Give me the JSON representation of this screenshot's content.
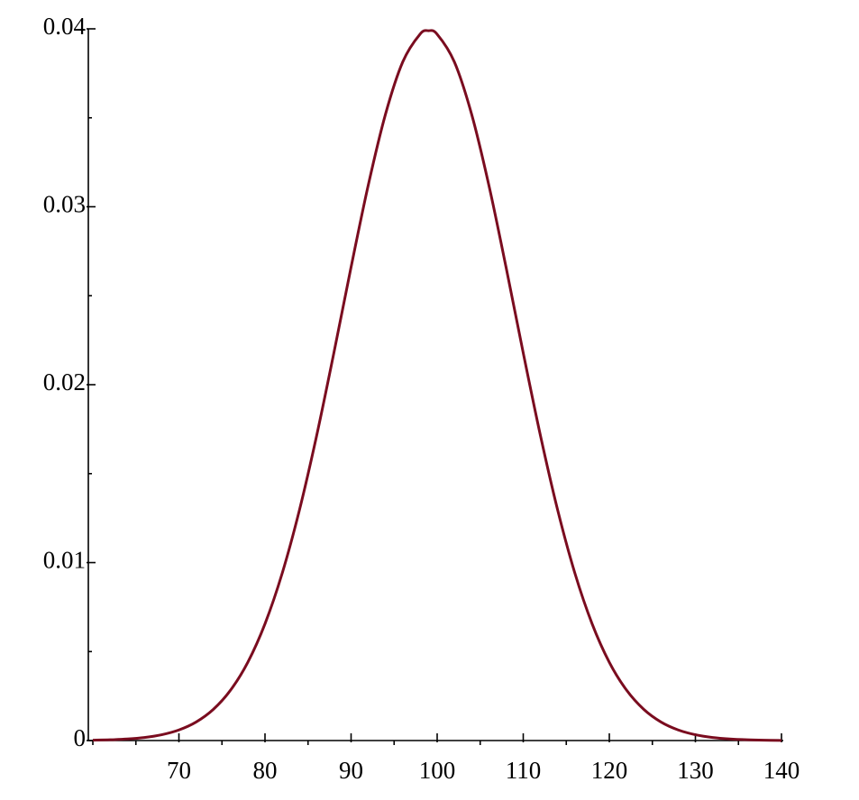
{
  "chart_data": {
    "type": "line",
    "x": [
      60,
      62,
      64,
      66,
      68,
      70,
      72,
      74,
      76,
      78,
      80,
      82,
      84,
      86,
      88,
      90,
      92,
      94,
      96,
      98,
      99,
      100,
      102,
      104,
      106,
      108,
      110,
      112,
      114,
      116,
      118,
      120,
      122,
      124,
      126,
      128,
      130,
      132,
      134,
      136,
      138,
      140
    ],
    "series": [
      {
        "color": "#7a0c1f",
        "values": [
          1.99e-05,
          4.25e-05,
          8.73e-05,
          0.000172,
          0.000327,
          0.000595,
          0.001042,
          0.001753,
          0.002833,
          0.004398,
          0.006562,
          0.009405,
          0.012952,
          0.017137,
          0.021785,
          0.026609,
          0.031225,
          0.035207,
          0.038139,
          0.039695,
          0.039894,
          0.039695,
          0.038139,
          0.035207,
          0.031225,
          0.026609,
          0.021785,
          0.017137,
          0.012952,
          0.009405,
          0.006562,
          0.004398,
          0.002833,
          0.001753,
          0.001042,
          0.000595,
          0.000327,
          0.000172,
          8.73e-05,
          4.25e-05,
          1.99e-05,
          8.9e-06
        ]
      }
    ],
    "xlim": [
      60,
      140
    ],
    "ylim": [
      0,
      0.04
    ],
    "xticks": [
      70,
      80,
      90,
      100,
      110,
      120,
      130,
      140
    ],
    "xminorticks": [
      60,
      65,
      75,
      85,
      95,
      105,
      115,
      125,
      135
    ],
    "yticks": [
      0,
      0.01,
      0.02,
      0.03,
      0.04
    ],
    "yminorticks": [
      0.005,
      0.015,
      0.025,
      0.035
    ]
  }
}
